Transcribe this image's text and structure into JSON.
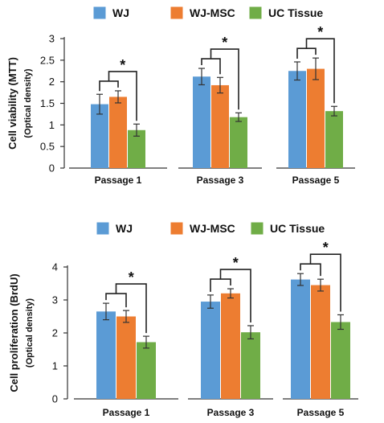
{
  "chart_data": [
    {
      "type": "bar",
      "title": "",
      "ylabel": "Cell viability (MTT)",
      "ylabel_sub": "(Optical density)",
      "xlabel": "",
      "ylim": [
        0,
        3
      ],
      "yticks": [
        0,
        0.5,
        1,
        1.5,
        2,
        2.5,
        3
      ],
      "categories": [
        "Passage 1",
        "Passage 3",
        "Passage 5"
      ],
      "legend": [
        "WJ",
        "WJ-MSC",
        "UC Tissue"
      ],
      "legend_position": "top",
      "significance_marker": "*",
      "series": [
        {
          "name": "WJ",
          "color": "#5B9BD5",
          "values": [
            1.48,
            2.12,
            2.25
          ],
          "errors": [
            0.23,
            0.19,
            0.21
          ]
        },
        {
          "name": "WJ-MSC",
          "color": "#ED7D31",
          "values": [
            1.65,
            1.92,
            2.3
          ],
          "errors": [
            0.14,
            0.18,
            0.25
          ]
        },
        {
          "name": "UC Tissue",
          "color": "#70AD47",
          "values": [
            0.88,
            1.18,
            1.32
          ],
          "errors": [
            0.14,
            0.1,
            0.11
          ]
        }
      ]
    },
    {
      "type": "bar",
      "title": "",
      "ylabel": "Cell proliferation (BrdU)",
      "ylabel_sub": "(Optical density)",
      "xlabel": "",
      "ylim": [
        0,
        4
      ],
      "yticks": [
        0,
        1,
        2,
        3,
        4
      ],
      "categories": [
        "Passage 1",
        "Passage 3",
        "Passage 5"
      ],
      "legend": [
        "WJ",
        "WJ-MSC",
        "UC Tissue"
      ],
      "legend_position": "top",
      "significance_marker": "*",
      "series": [
        {
          "name": "WJ",
          "color": "#5B9BD5",
          "values": [
            2.65,
            2.95,
            3.62
          ],
          "errors": [
            0.25,
            0.2,
            0.18
          ]
        },
        {
          "name": "WJ-MSC",
          "color": "#ED7D31",
          "values": [
            2.5,
            3.2,
            3.45
          ],
          "errors": [
            0.18,
            0.14,
            0.18
          ]
        },
        {
          "name": "UC Tissue",
          "color": "#70AD47",
          "values": [
            1.72,
            2.02,
            2.33
          ],
          "errors": [
            0.18,
            0.2,
            0.22
          ]
        }
      ]
    }
  ]
}
